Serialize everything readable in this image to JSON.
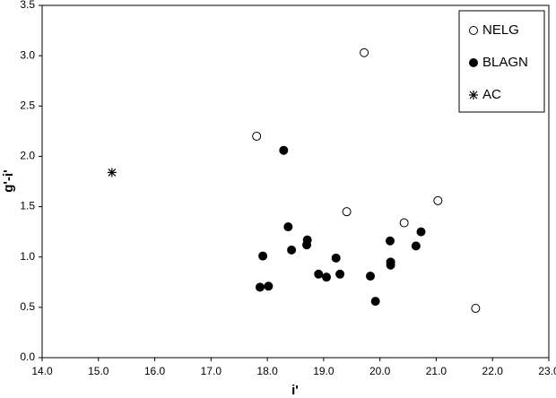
{
  "chart_data": {
    "type": "scatter",
    "x_label": "i'",
    "y_label": "g'-i'",
    "xlim": [
      14.0,
      23.0
    ],
    "xticks": [
      {
        "value": 14,
        "label": "14.0"
      },
      {
        "value": 15,
        "label": "15.0"
      },
      {
        "value": 16,
        "label": "16.0"
      },
      {
        "value": 17,
        "label": "17.0"
      },
      {
        "value": 18,
        "label": "18.0"
      },
      {
        "value": 19,
        "label": "19.0"
      },
      {
        "value": 20,
        "label": "20.0"
      },
      {
        "value": 21,
        "label": "21.0"
      },
      {
        "value": 22,
        "label": "22.0"
      },
      {
        "value": 23,
        "label": "23.0"
      }
    ],
    "ylim": [
      0,
      3.5
    ],
    "yticks": [
      {
        "value": 0,
        "label": "0.0"
      },
      0.5,
      {
        "value": 1,
        "label": "1.0"
      },
      1.5,
      {
        "value": 2,
        "label": "2.0"
      },
      2.5,
      {
        "value": 3,
        "label": "3.0"
      },
      3.5
    ],
    "grid": false,
    "legend": "upper right",
    "series": [
      {
        "name": "NELG",
        "color": "#000000",
        "marker": "open-circle",
        "x": [
          19.72,
          17.81,
          19.41,
          20.43,
          21.03,
          21.7
        ],
        "values": [
          3.03,
          2.2,
          1.45,
          1.34,
          1.56,
          0.49
        ]
      },
      {
        "name": "BLAGN",
        "color": "#000000",
        "marker": "filled-circle",
        "x": [
          18.29,
          18.37,
          18.43,
          18.71,
          18.7,
          17.92,
          17.87,
          18.02,
          18.91,
          19.05,
          19.22,
          19.29,
          19.83,
          19.92,
          20.18,
          20.19,
          20.19,
          20.64,
          20.73
        ],
        "values": [
          2.06,
          1.3,
          1.07,
          1.17,
          1.12,
          1.01,
          0.7,
          0.71,
          0.83,
          0.8,
          0.99,
          0.83,
          0.81,
          0.56,
          1.16,
          0.95,
          0.92,
          1.11,
          1.25
        ]
      },
      {
        "name": "AC",
        "color": "#000000",
        "marker": "asterisk",
        "x": [
          15.24
        ],
        "values": [
          1.84
        ]
      }
    ]
  }
}
